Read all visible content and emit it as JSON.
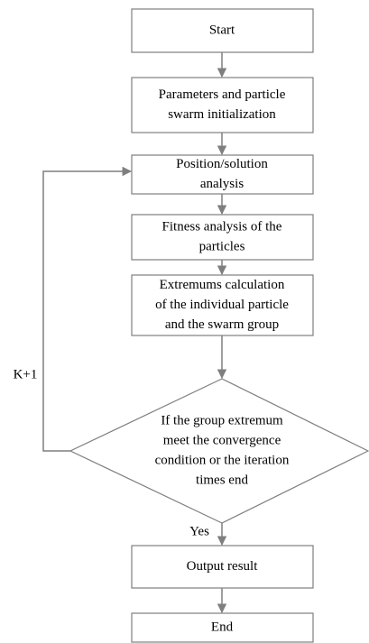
{
  "nodes": [
    {
      "lines": [
        "Start"
      ]
    },
    {
      "lines": [
        "Parameters and particle",
        "swarm initialization"
      ]
    },
    {
      "lines": [
        "Position/solution",
        "analysis"
      ]
    },
    {
      "lines": [
        "Fitness analysis of the",
        "particles"
      ]
    },
    {
      "lines": [
        "Extremums calculation",
        "of the individual particle",
        "and the swarm group"
      ]
    },
    {
      "lines": [
        "If the group extremum",
        "meet the convergence",
        "condition or the iteration",
        "times end"
      ]
    },
    {
      "lines": [
        "Output result"
      ]
    },
    {
      "lines": [
        "End"
      ]
    }
  ],
  "edge_labels": [
    "K+1",
    "Yes"
  ]
}
